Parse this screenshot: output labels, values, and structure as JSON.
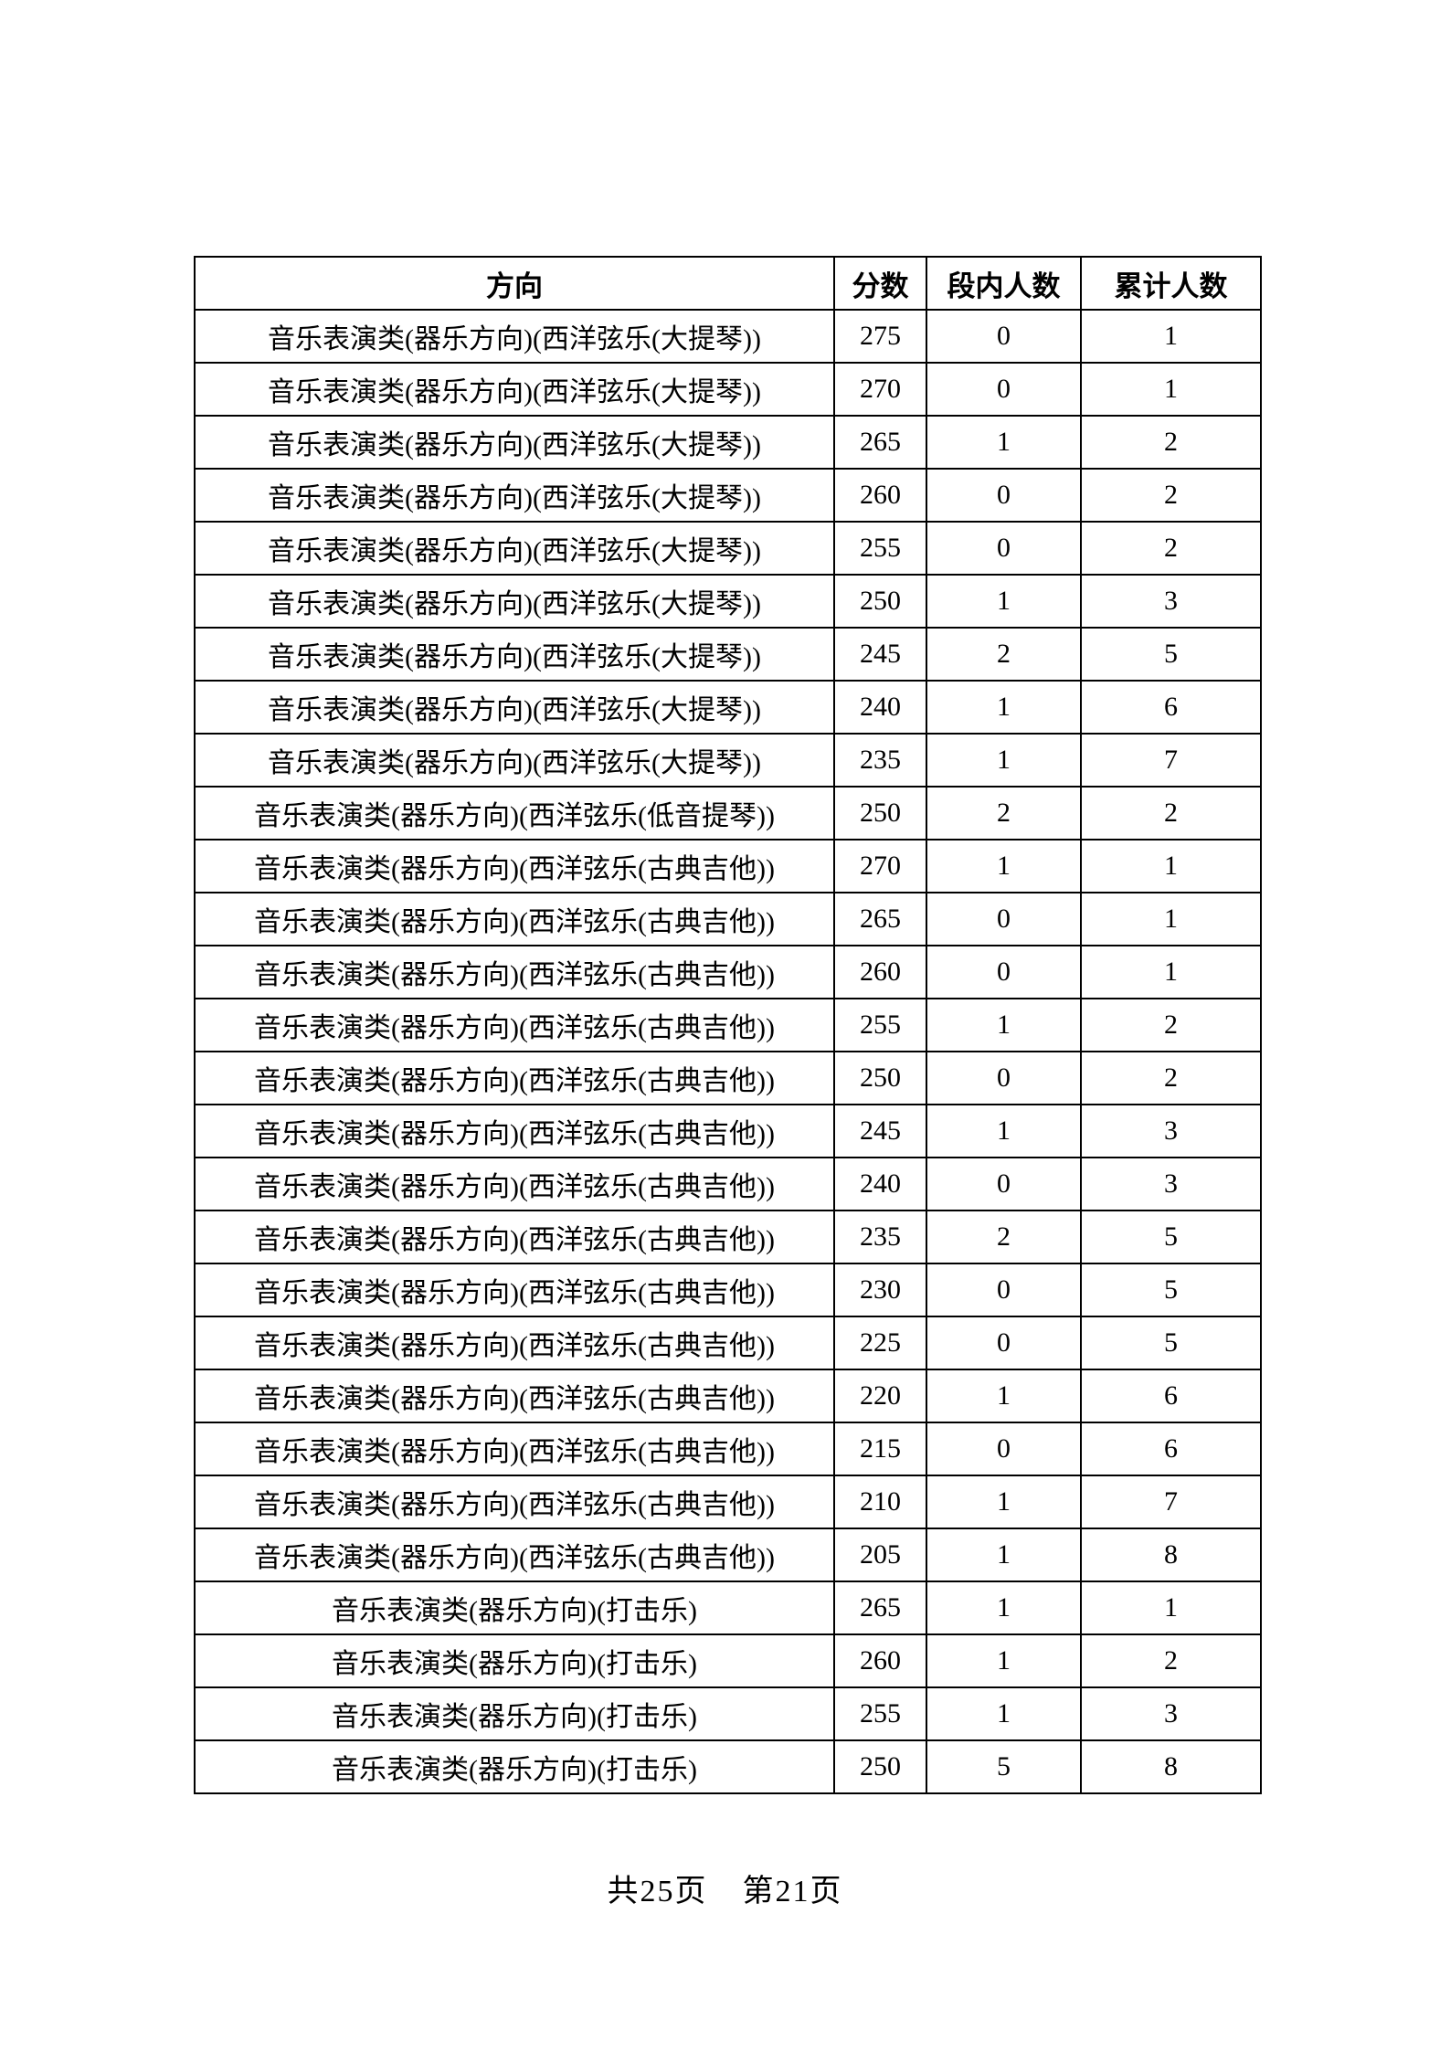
{
  "table": {
    "columns": [
      "方向",
      "分数",
      "段内人数",
      "累计人数"
    ],
    "rows": [
      [
        "音乐表演类(器乐方向)(西洋弦乐(大提琴))",
        "275",
        "0",
        "1"
      ],
      [
        "音乐表演类(器乐方向)(西洋弦乐(大提琴))",
        "270",
        "0",
        "1"
      ],
      [
        "音乐表演类(器乐方向)(西洋弦乐(大提琴))",
        "265",
        "1",
        "2"
      ],
      [
        "音乐表演类(器乐方向)(西洋弦乐(大提琴))",
        "260",
        "0",
        "2"
      ],
      [
        "音乐表演类(器乐方向)(西洋弦乐(大提琴))",
        "255",
        "0",
        "2"
      ],
      [
        "音乐表演类(器乐方向)(西洋弦乐(大提琴))",
        "250",
        "1",
        "3"
      ],
      [
        "音乐表演类(器乐方向)(西洋弦乐(大提琴))",
        "245",
        "2",
        "5"
      ],
      [
        "音乐表演类(器乐方向)(西洋弦乐(大提琴))",
        "240",
        "1",
        "6"
      ],
      [
        "音乐表演类(器乐方向)(西洋弦乐(大提琴))",
        "235",
        "1",
        "7"
      ],
      [
        "音乐表演类(器乐方向)(西洋弦乐(低音提琴))",
        "250",
        "2",
        "2"
      ],
      [
        "音乐表演类(器乐方向)(西洋弦乐(古典吉他))",
        "270",
        "1",
        "1"
      ],
      [
        "音乐表演类(器乐方向)(西洋弦乐(古典吉他))",
        "265",
        "0",
        "1"
      ],
      [
        "音乐表演类(器乐方向)(西洋弦乐(古典吉他))",
        "260",
        "0",
        "1"
      ],
      [
        "音乐表演类(器乐方向)(西洋弦乐(古典吉他))",
        "255",
        "1",
        "2"
      ],
      [
        "音乐表演类(器乐方向)(西洋弦乐(古典吉他))",
        "250",
        "0",
        "2"
      ],
      [
        "音乐表演类(器乐方向)(西洋弦乐(古典吉他))",
        "245",
        "1",
        "3"
      ],
      [
        "音乐表演类(器乐方向)(西洋弦乐(古典吉他))",
        "240",
        "0",
        "3"
      ],
      [
        "音乐表演类(器乐方向)(西洋弦乐(古典吉他))",
        "235",
        "2",
        "5"
      ],
      [
        "音乐表演类(器乐方向)(西洋弦乐(古典吉他))",
        "230",
        "0",
        "5"
      ],
      [
        "音乐表演类(器乐方向)(西洋弦乐(古典吉他))",
        "225",
        "0",
        "5"
      ],
      [
        "音乐表演类(器乐方向)(西洋弦乐(古典吉他))",
        "220",
        "1",
        "6"
      ],
      [
        "音乐表演类(器乐方向)(西洋弦乐(古典吉他))",
        "215",
        "0",
        "6"
      ],
      [
        "音乐表演类(器乐方向)(西洋弦乐(古典吉他))",
        "210",
        "1",
        "7"
      ],
      [
        "音乐表演类(器乐方向)(西洋弦乐(古典吉他))",
        "205",
        "1",
        "8"
      ],
      [
        "音乐表演类(器乐方向)(打击乐)",
        "265",
        "1",
        "1"
      ],
      [
        "音乐表演类(器乐方向)(打击乐)",
        "260",
        "1",
        "2"
      ],
      [
        "音乐表演类(器乐方向)(打击乐)",
        "255",
        "1",
        "3"
      ],
      [
        "音乐表演类(器乐方向)(打击乐)",
        "250",
        "5",
        "8"
      ]
    ]
  },
  "footer": {
    "total_pages": "共25页",
    "current_page": "第21页"
  }
}
